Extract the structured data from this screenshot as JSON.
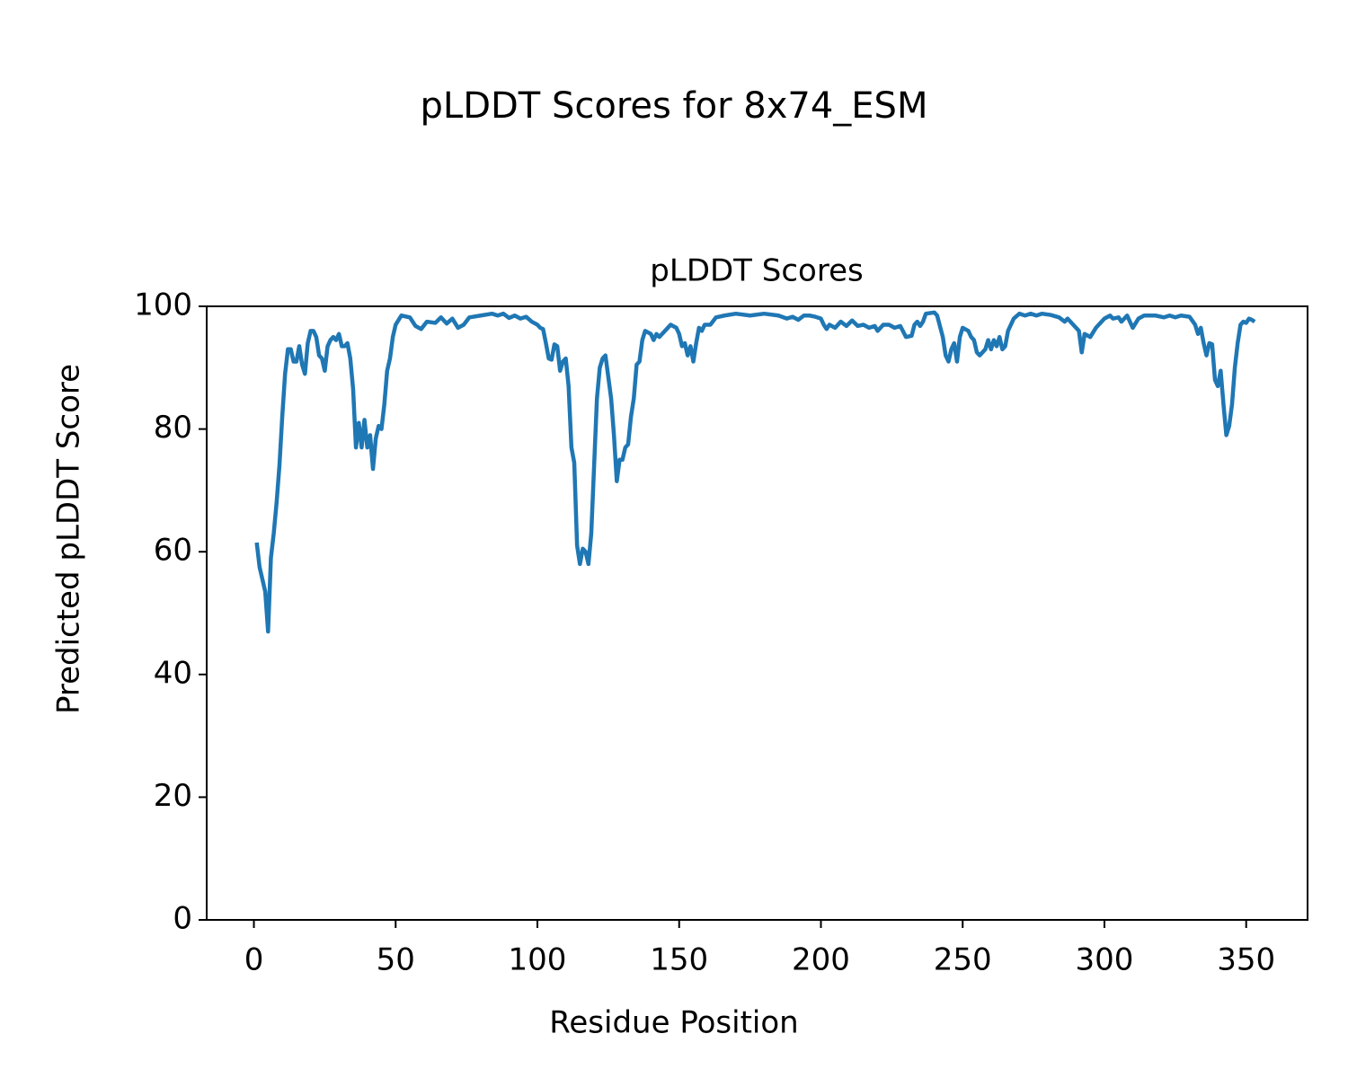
{
  "chart_data": {
    "type": "line",
    "title": "pLDDT Scores for 8x74_ESM",
    "subtitle": "pLDDT Scores",
    "xlabel": "Residue Position",
    "ylabel": "Predicted pLDDT Score",
    "color": "#1f77b4",
    "x": [
      1,
      2,
      3,
      4,
      5,
      6,
      7,
      8,
      9,
      10,
      11,
      12,
      13,
      14,
      15,
      16,
      17,
      18,
      19,
      20,
      21,
      22,
      23,
      24,
      25,
      26,
      27,
      28,
      29,
      30,
      31,
      32,
      33,
      34,
      35,
      36,
      37,
      38,
      39,
      40,
      41,
      42,
      43,
      44,
      45,
      46,
      47,
      48,
      49,
      50,
      52,
      55,
      57,
      59,
      61,
      64,
      66,
      68,
      70,
      72,
      74,
      76,
      80,
      84,
      86,
      88,
      90,
      92,
      94,
      96,
      98,
      100,
      101,
      102,
      103,
      104,
      105,
      106,
      107,
      108,
      109,
      110,
      111,
      112,
      113,
      114,
      115,
      116,
      117,
      118,
      119,
      120,
      121,
      122,
      123,
      124,
      126,
      127,
      128,
      129,
      130,
      131,
      132,
      133,
      134,
      135,
      136,
      137,
      138,
      140,
      141,
      142,
      143,
      145,
      147,
      149,
      150,
      151,
      152,
      153,
      154,
      155,
      156,
      157,
      158,
      159,
      161,
      163,
      166,
      170,
      175,
      180,
      185,
      188,
      190,
      192,
      194,
      196,
      198,
      200,
      201,
      202,
      203,
      205,
      207,
      209,
      211,
      213,
      215,
      217,
      219,
      220,
      222,
      224,
      226,
      228,
      230,
      232,
      233,
      234,
      235,
      236,
      237,
      240,
      241,
      243,
      244,
      245,
      246,
      247,
      248,
      249,
      250,
      252,
      253,
      254,
      255,
      256,
      258,
      259,
      260,
      261,
      262,
      263,
      264,
      265,
      266,
      268,
      270,
      272,
      274,
      276,
      278,
      281,
      284,
      286,
      287,
      289,
      291,
      292,
      293,
      295,
      297,
      300,
      302,
      303,
      305,
      306,
      308,
      309,
      310,
      312,
      314,
      318,
      321,
      323,
      325,
      327,
      330,
      332,
      333,
      334,
      335,
      336,
      337,
      338,
      339,
      340,
      341,
      342,
      343,
      344,
      345,
      346,
      347,
      348,
      349,
      350,
      351,
      352,
      353
    ],
    "values": [
      61.5,
      57.5,
      55.5,
      53.5,
      47,
      59,
      63,
      68,
      74,
      82,
      89,
      93,
      93,
      91,
      91,
      93.5,
      90.5,
      89,
      94,
      96,
      96,
      95,
      92,
      91.5,
      89.5,
      93.5,
      94.5,
      95,
      94.5,
      95.5,
      93.5,
      93.5,
      94,
      91.5,
      86.5,
      77,
      81,
      77,
      81.5,
      77,
      79,
      73.5,
      78.5,
      80.5,
      80,
      84,
      89.5,
      91.5,
      95,
      97,
      98.5,
      98.2,
      96.8,
      96.3,
      97.5,
      97.3,
      98.2,
      97.2,
      98,
      96.5,
      97,
      98.2,
      98.5,
      98.8,
      98.5,
      98.8,
      98.1,
      98.5,
      98,
      98.3,
      97.5,
      97,
      96.5,
      96.3,
      94,
      91.5,
      91.3,
      93.8,
      93.5,
      89.5,
      91,
      91.5,
      87,
      77,
      74.5,
      61,
      58,
      60.5,
      60,
      58,
      63,
      74,
      85,
      90,
      91.5,
      92,
      85,
      79,
      71.5,
      75,
      75,
      77,
      77.5,
      82,
      85,
      90.5,
      91,
      94.5,
      96,
      95.5,
      94.5,
      95.5,
      95,
      96,
      97,
      96.5,
      95.5,
      93.5,
      94,
      92,
      93.5,
      91,
      94,
      96.5,
      96,
      97,
      97,
      98.2,
      98.5,
      98.8,
      98.5,
      98.8,
      98.5,
      98,
      98.3,
      97.8,
      98.5,
      98.5,
      98.3,
      98,
      97,
      96.3,
      97,
      96.5,
      97.5,
      96.8,
      97.7,
      96.8,
      97,
      96.5,
      96.8,
      96,
      97,
      97,
      96.5,
      96.8,
      95,
      95.2,
      97,
      97.5,
      96.8,
      97.5,
      98.8,
      99,
      98.5,
      95,
      92,
      91,
      93,
      94,
      91,
      95,
      96.5,
      96,
      95,
      94.5,
      92.5,
      92,
      93,
      94.5,
      93,
      94.5,
      93.5,
      95,
      93,
      93.5,
      96,
      98,
      98.8,
      98.5,
      98.8,
      98.5,
      98.8,
      98.6,
      98.2,
      97.5,
      98,
      97,
      96,
      92.5,
      95.5,
      95,
      96.5,
      98,
      98.5,
      98,
      98.2,
      97.5,
      98.5,
      97.5,
      96.5,
      98,
      98.5,
      98.5,
      98.2,
      98.5,
      98.2,
      98.5,
      98.3,
      97,
      95.5,
      96.5,
      94,
      92,
      94,
      93.8,
      88,
      87,
      89.5,
      84,
      79,
      80.5,
      84,
      90,
      94,
      97,
      97.5,
      97.3,
      98,
      97.8,
      97.5
    ],
    "xlim": [
      -16.65,
      371.65
    ],
    "ylim": [
      0,
      100
    ],
    "xticks": [
      0,
      50,
      100,
      150,
      200,
      250,
      300,
      350
    ],
    "yticks": [
      0,
      20,
      40,
      60,
      80,
      100
    ]
  }
}
